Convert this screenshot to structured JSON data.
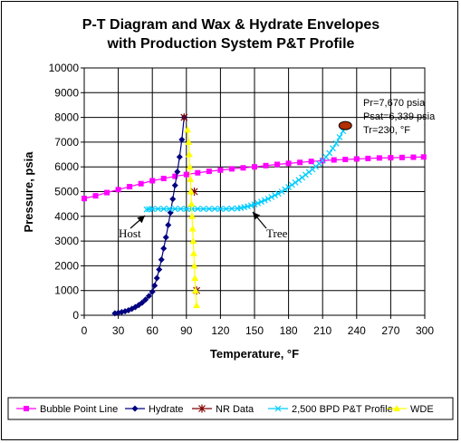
{
  "chart_data": {
    "type": "scatter",
    "title_line1": "P-T Diagram and Wax & Hydrate Envelopes",
    "title_line2": "with Production System P&T Profile",
    "xlabel": "Temperature, °F",
    "ylabel": "Pressure, psia",
    "xlim": [
      0,
      300
    ],
    "ylim": [
      0,
      10000
    ],
    "x_ticks": [
      0,
      30,
      60,
      90,
      120,
      150,
      180,
      210,
      240,
      270,
      300
    ],
    "y_ticks": [
      0,
      1000,
      2000,
      3000,
      4000,
      5000,
      6000,
      7000,
      8000,
      9000,
      10000
    ],
    "grid": true,
    "legend_position": "bottom",
    "series": [
      {
        "name": "Bubble Point Line",
        "color": "#ff00ff",
        "marker": "square",
        "x": [
          0,
          10,
          20,
          30,
          40,
          50,
          60,
          70,
          80,
          90,
          100,
          110,
          120,
          130,
          140,
          150,
          160,
          170,
          180,
          190,
          200,
          210,
          220,
          230,
          240,
          250,
          260,
          270,
          280,
          290,
          299
        ],
        "y": [
          4720,
          4830,
          4960,
          5080,
          5200,
          5320,
          5440,
          5530,
          5620,
          5690,
          5760,
          5820,
          5870,
          5920,
          5960,
          6000,
          6050,
          6100,
          6140,
          6180,
          6220,
          6250,
          6280,
          6300,
          6320,
          6340,
          6360,
          6370,
          6380,
          6390,
          6400
        ]
      },
      {
        "name": "Hydrate",
        "color": "#000080",
        "marker": "diamond",
        "x": [
          27,
          30,
          33,
          36,
          39,
          42,
          45,
          48,
          51,
          54,
          57,
          60,
          62,
          64,
          66,
          68,
          70,
          72,
          74,
          76,
          78,
          80,
          82,
          84,
          86,
          88
        ],
        "y": [
          80,
          100,
          130,
          160,
          200,
          260,
          330,
          410,
          510,
          630,
          780,
          950,
          1200,
          1500,
          1850,
          2250,
          2700,
          3150,
          3650,
          4150,
          4700,
          5250,
          5800,
          6400,
          7100,
          8000
        ]
      },
      {
        "name": "NR Data",
        "color": "#800000",
        "marker": "star",
        "x": [
          88,
          97,
          99
        ],
        "y": [
          8000,
          5000,
          1000
        ],
        "line": false
      },
      {
        "name": "2,500 BPD P&T Profile",
        "color": "#00ccff",
        "marker": "x",
        "x": [
          228,
          225,
          222,
          219,
          216,
          213,
          210,
          207,
          204,
          201,
          198,
          195,
          192,
          189,
          186,
          183,
          180,
          177,
          174,
          171,
          168,
          165,
          162,
          159,
          156,
          153,
          150,
          147,
          144,
          141,
          138,
          135,
          130,
          125,
          120,
          115,
          110,
          105,
          100,
          95,
          90,
          85,
          80,
          75,
          70,
          65,
          60,
          57,
          55
        ],
        "y": [
          7450,
          7200,
          6950,
          6750,
          6560,
          6400,
          6260,
          6130,
          6010,
          5900,
          5790,
          5680,
          5570,
          5470,
          5370,
          5270,
          5180,
          5090,
          5000,
          4920,
          4850,
          4780,
          4710,
          4650,
          4590,
          4530,
          4480,
          4440,
          4400,
          4370,
          4340,
          4320,
          4310,
          4300,
          4300,
          4300,
          4300,
          4300,
          4300,
          4300,
          4300,
          4300,
          4300,
          4300,
          4300,
          4300,
          4300,
          4290,
          4280
        ]
      },
      {
        "name": "WDE",
        "color": "#ffff00",
        "marker": "triangle",
        "x": [
          91,
          92,
          92.5,
          93,
          93.5,
          94,
          94.5,
          95,
          95.5,
          96,
          96.5,
          97,
          97.5,
          98,
          99
        ],
        "y": [
          7500,
          7000,
          6500,
          6000,
          5500,
          5000,
          4500,
          4000,
          3500,
          3000,
          2500,
          2000,
          1500,
          1000,
          400
        ]
      }
    ],
    "reservoir_point": {
      "x": 230,
      "y": 7670,
      "color": "#b33000"
    },
    "annotations": {
      "pr": "Pr=7,670 psia",
      "psat": "Psat=6,339 psia",
      "tr": "Tr=230, °F",
      "host": "Host",
      "tree": "Tree"
    }
  }
}
